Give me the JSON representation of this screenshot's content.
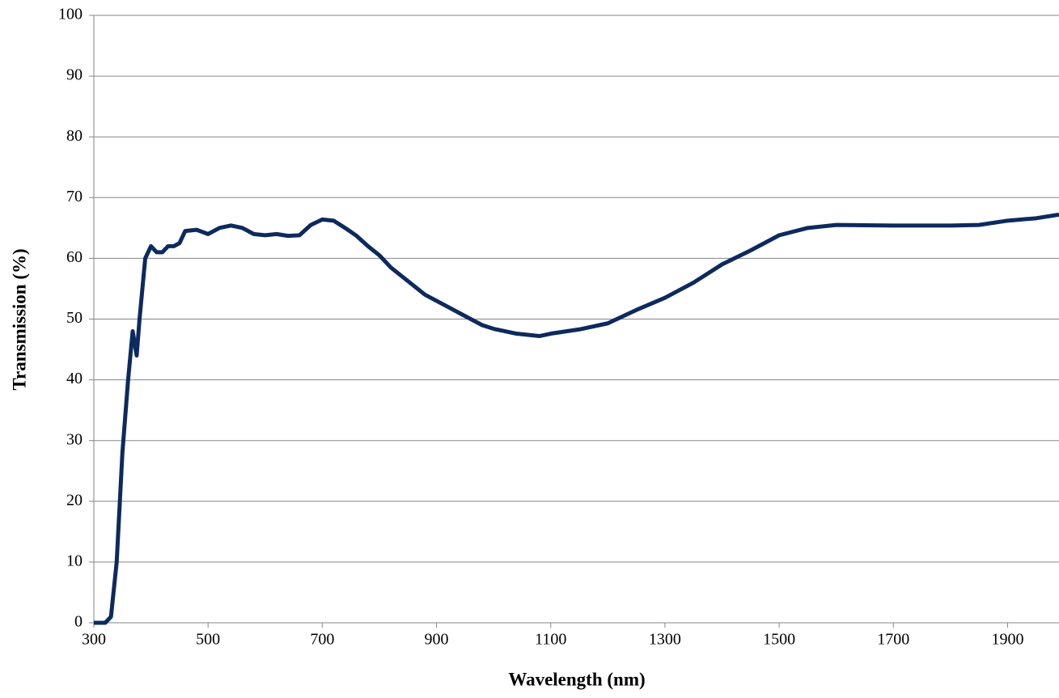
{
  "chart_data": {
    "type": "line",
    "x_label": "Wavelength (nm)",
    "y_label": "Transmission (%)",
    "x": [
      300,
      320,
      330,
      340,
      350,
      360,
      368,
      375,
      380,
      390,
      400,
      410,
      420,
      430,
      440,
      450,
      460,
      480,
      500,
      520,
      540,
      560,
      580,
      600,
      620,
      640,
      660,
      680,
      700,
      720,
      740,
      760,
      780,
      800,
      820,
      840,
      860,
      880,
      900,
      920,
      940,
      960,
      980,
      1000,
      1020,
      1040,
      1060,
      1080,
      1100,
      1150,
      1200,
      1250,
      1300,
      1350,
      1400,
      1450,
      1500,
      1550,
      1600,
      1700,
      1800,
      1850,
      1900,
      1950,
      1990
    ],
    "series": [
      {
        "name": "Transmission",
        "color": "#0d2a5e",
        "values": [
          0,
          0,
          1,
          10,
          28,
          40,
          48,
          44,
          50,
          60,
          62,
          61,
          61,
          62,
          62,
          62.5,
          64.5,
          64.7,
          64,
          65,
          65.4,
          65,
          64,
          63.8,
          64,
          63.7,
          63.8,
          65.5,
          66.4,
          66.2,
          65,
          63.7,
          62,
          60.5,
          58.5,
          57,
          55.5,
          54,
          53,
          52,
          51,
          50,
          49,
          48.4,
          48,
          47.6,
          47.4,
          47.2,
          47.6,
          48.3,
          49.3,
          51.5,
          53.5,
          56,
          59,
          61.3,
          63.8,
          65,
          65.5,
          65.4,
          65.4,
          65.5,
          66.2,
          66.6,
          67.2
        ]
      }
    ],
    "xlim": [
      300,
      1990
    ],
    "xticks": [
      300,
      500,
      700,
      900,
      1100,
      1300,
      1500,
      1700,
      1900
    ],
    "ylim": [
      0,
      100
    ],
    "yticks": [
      0,
      10,
      20,
      30,
      40,
      50,
      60,
      70,
      80,
      90,
      100
    ],
    "grid": true
  }
}
